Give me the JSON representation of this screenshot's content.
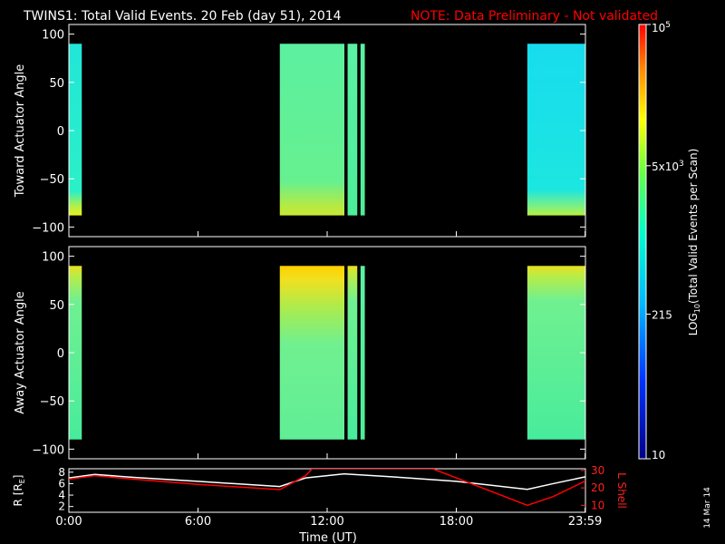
{
  "header": {
    "title": "TWINS1: Total Valid Events. 20 Feb (day  51), 2014",
    "note": "NOTE: Data Preliminary - Not validated",
    "note_color": "#ff0000"
  },
  "footer": {
    "xlabel": "Time (UT)",
    "date_stamp": "14 Mar 14"
  },
  "colorbar": {
    "label_main": "LOG",
    "label_sub": "10",
    "label_rest": "(Total Valid Events per Scan)",
    "ticks": [
      {
        "label": "10",
        "value": 10
      },
      {
        "label": "215",
        "value": 215
      },
      {
        "label": "5x10",
        "sup": "3",
        "value": 5000
      },
      {
        "label": "10",
        "sup": "5",
        "value": 100000
      }
    ]
  },
  "chart_data": [
    {
      "type": "heatmap",
      "ylabel": "Toward Actuator Angle",
      "x_range_hours": [
        0,
        24
      ],
      "y_range": [
        -110,
        110
      ],
      "y_ticks": [
        100,
        50,
        0,
        -50,
        -100
      ],
      "data_blocks": [
        {
          "start_hour": 0.0,
          "end_hour": 0.6,
          "angle_range": [
            -88,
            90
          ],
          "level": "cyan",
          "edge_bottom_level": "yellow"
        },
        {
          "start_hour": 9.8,
          "end_hour": 12.8,
          "angle_range": [
            -88,
            90
          ],
          "level": "green",
          "edge_bottom_level": "yellow-green"
        },
        {
          "start_hour": 12.95,
          "end_hour": 13.4,
          "angle_range": [
            -88,
            90
          ],
          "level": "green"
        },
        {
          "start_hour": 13.55,
          "end_hour": 13.75,
          "angle_range": [
            -88,
            90
          ],
          "level": "green"
        },
        {
          "start_hour": 21.3,
          "end_hour": 24.0,
          "angle_range": [
            -88,
            90
          ],
          "level": "cyan",
          "edge_bottom_level": "yellow-green"
        }
      ]
    },
    {
      "type": "heatmap",
      "ylabel": "Away Actuator Angle",
      "x_range_hours": [
        0,
        24
      ],
      "y_range": [
        -110,
        110
      ],
      "y_ticks": [
        100,
        50,
        0,
        -50,
        -100
      ],
      "data_blocks": [
        {
          "start_hour": 0.0,
          "end_hour": 0.6,
          "angle_range": [
            -90,
            90
          ],
          "level": "green",
          "edge_top_level": "yellow"
        },
        {
          "start_hour": 9.8,
          "end_hour": 12.8,
          "angle_range": [
            -90,
            90
          ],
          "level": "green",
          "edge_top_level": "yellow-orange"
        },
        {
          "start_hour": 12.95,
          "end_hour": 13.4,
          "angle_range": [
            -90,
            90
          ],
          "level": "green",
          "edge_top_level": "yellow"
        },
        {
          "start_hour": 13.55,
          "end_hour": 13.75,
          "angle_range": [
            -90,
            90
          ],
          "level": "green"
        },
        {
          "start_hour": 21.3,
          "end_hour": 24.0,
          "angle_range": [
            -90,
            90
          ],
          "level": "green",
          "edge_top_level": "yellow"
        }
      ]
    },
    {
      "type": "line",
      "ylabel_left": "R [R",
      "ylabel_left_sub": "E",
      "ylabel_left_end": "]",
      "ylabel_right": "L Shell",
      "x_ticks": [
        {
          "label": "0:00",
          "hour": 0
        },
        {
          "label": "6:00",
          "hour": 6
        },
        {
          "label": "12:00",
          "hour": 12
        },
        {
          "label": "18:00",
          "hour": 18
        },
        {
          "label": "23:59",
          "hour": 23.983
        }
      ],
      "y_left_ticks": [
        2,
        4,
        6,
        8
      ],
      "y_left_range": [
        1,
        8.6
      ],
      "y_right_ticks": [
        10,
        20,
        30
      ],
      "y_right_range": [
        6,
        31
      ],
      "series": [
        {
          "name": "R",
          "color": "#ffffff",
          "axis": "left",
          "x": [
            0,
            1.2,
            3,
            6,
            9.8,
            11,
            12.8,
            15,
            18,
            21.3,
            22.5,
            24
          ],
          "y": [
            7.0,
            7.6,
            7.1,
            6.4,
            5.5,
            7.0,
            7.7,
            7.2,
            6.4,
            5.0,
            6.0,
            7.2
          ]
        },
        {
          "name": "L Shell",
          "color": "#ff0000",
          "axis": "right",
          "x": [
            0,
            1.2,
            3,
            6,
            9.8,
            11,
            11.3,
            16.9,
            21.3,
            22.5,
            24
          ],
          "y": [
            25,
            27,
            25,
            22,
            19,
            27,
            31,
            31,
            10,
            15,
            24
          ]
        }
      ]
    }
  ]
}
